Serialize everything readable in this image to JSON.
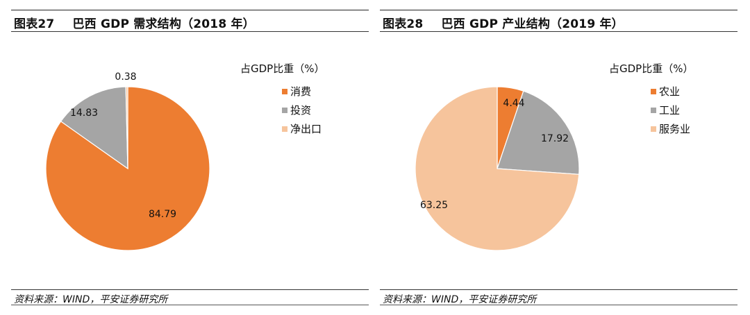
{
  "source_text": "资料来源：WIND，平安证券研究所",
  "colors": {
    "orange": "#ED7D31",
    "gray": "#A5A5A5",
    "peach": "#F6C49C"
  },
  "chart_data": [
    {
      "type": "pie",
      "figure_num": "图表27",
      "title": "巴西 GDP 需求结构（2018 年）",
      "subtitle": "占GDP比重（%）",
      "legend_position": "right",
      "categories": [
        "消费",
        "投资",
        "净出口"
      ],
      "values": [
        84.79,
        14.83,
        0.38
      ],
      "value_labels": [
        "84.79",
        "14.83",
        "0.38"
      ],
      "colors": [
        "#ED7D31",
        "#A5A5A5",
        "#F6C49C"
      ]
    },
    {
      "type": "pie",
      "figure_num": "图表28",
      "title": "巴西 GDP 产业结构（2019 年）",
      "subtitle": "占GDP比重（%）",
      "legend_position": "right",
      "categories": [
        "农业",
        "工业",
        "服务业"
      ],
      "values": [
        4.44,
        17.92,
        63.25
      ],
      "value_labels": [
        "4.44",
        "17.92",
        "63.25"
      ],
      "colors": [
        "#ED7D31",
        "#A5A5A5",
        "#F6C49C"
      ]
    }
  ]
}
